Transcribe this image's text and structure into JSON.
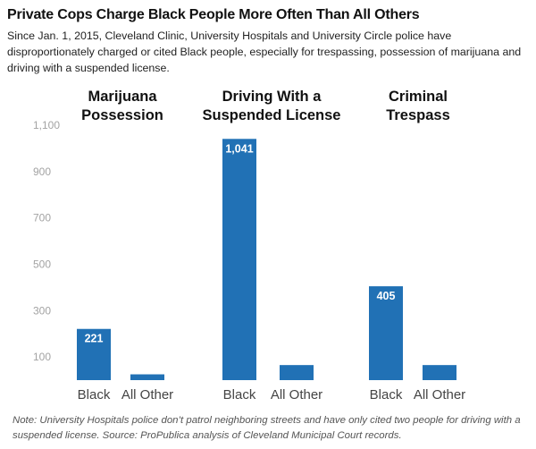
{
  "title": "Private Cops Charge Black People More Often Than All Others",
  "subtitle": "Since Jan. 1, 2015, Cleveland Clinic, University Hospitals and University Circle police have disproportionately charged or cited Black people, especially for trespassing, possession of marijuana and driving with a suspended license.",
  "note": "Note: University Hospitals police don’t patrol neighboring streets and have only cited two people for driving with a suspended license. Source: ProPublica analysis of Cleveland Municipal Court records.",
  "colors": {
    "bar": "#2171b5"
  },
  "chart_data": {
    "type": "bar",
    "ylim": [
      0,
      1100
    ],
    "yticks": [
      100,
      300,
      500,
      700,
      900,
      1100
    ],
    "ytick_labels": [
      "100",
      "300",
      "500",
      "700",
      "900",
      "1,100"
    ],
    "grid": false,
    "panels": [
      {
        "title_lines": [
          "Marijuana",
          "Possession"
        ],
        "categories": [
          "Black",
          "All Other"
        ],
        "values": [
          221,
          25
        ],
        "data_labels": [
          "221",
          ""
        ]
      },
      {
        "title_lines": [
          "Driving With a",
          "Suspended License"
        ],
        "categories": [
          "Black",
          "All Other"
        ],
        "values": [
          1041,
          65
        ],
        "data_labels": [
          "1,041",
          ""
        ]
      },
      {
        "title_lines": [
          "Criminal",
          "Trespass"
        ],
        "categories": [
          "Black",
          "All Other"
        ],
        "values": [
          405,
          65
        ],
        "data_labels": [
          "405",
          ""
        ]
      }
    ]
  }
}
